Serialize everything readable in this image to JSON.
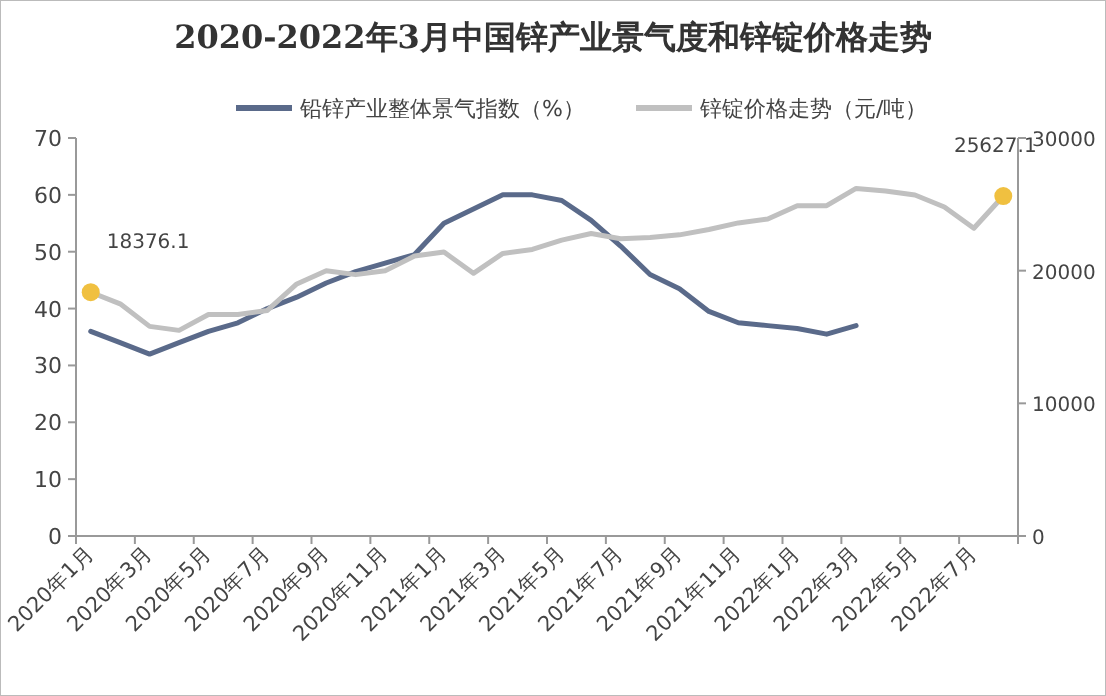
{
  "chart_data": {
    "type": "line",
    "title": "2020-2022年3月中国锌产业景气度和锌锭价格走势",
    "categories": [
      "2020年1月",
      null,
      "2020年3月",
      null,
      "2020年5月",
      null,
      "2020年7月",
      null,
      "2020年9月",
      null,
      "2020年11月",
      null,
      "2021年1月",
      null,
      "2021年3月",
      null,
      "2021年5月",
      null,
      "2021年7月",
      null,
      "2021年9月",
      null,
      "2021年11月",
      null,
      "2022年1月",
      null,
      "2022年3月",
      null,
      "2022年5月",
      null,
      "2022年7月",
      null
    ],
    "series": [
      {
        "name": "铅锌产业整体景气指数（%）",
        "color": "#5a6a8a",
        "values": [
          36,
          34,
          32,
          34,
          36,
          37.5,
          40,
          42,
          44.5,
          46.5,
          48,
          49.5,
          55,
          57.5,
          60,
          60,
          59,
          55.5,
          51,
          46,
          43.5,
          39.5,
          37.5,
          37,
          36.5,
          35.5,
          37,
          null,
          null,
          null,
          null,
          null
        ]
      },
      {
        "name": "锌锭价格走势（元/吨）",
        "color": "#c0c0c0",
        "axis": "y2",
        "values": [
          18376.1,
          17500,
          15800,
          15500,
          16700,
          16700,
          17000,
          19000,
          20000,
          19700,
          20000,
          21100,
          21400,
          19800,
          21300,
          21600,
          22300,
          22800,
          22400,
          22500,
          22700,
          23100,
          23600,
          23900,
          24900,
          24900,
          26200,
          26000,
          25700,
          24800,
          23200,
          25627.1
        ],
        "value_labels": [
          "18376.1",
          null,
          null,
          null,
          null,
          null,
          null,
          null,
          null,
          null,
          null,
          null,
          null,
          null,
          null,
          null,
          null,
          null,
          null,
          null,
          null,
          null,
          null,
          null,
          null,
          null,
          null,
          null,
          null,
          null,
          null,
          "25627.1"
        ]
      }
    ],
    "ylim": [
      0,
      70
    ],
    "yticks": [
      0,
      10,
      20,
      30,
      40,
      50,
      60,
      70
    ],
    "y2lim": [
      0,
      30000
    ],
    "y2ticks": [
      0,
      10000,
      20000,
      30000
    ],
    "legend": "top",
    "grid": false,
    "marker": "none",
    "line_style": "solid"
  }
}
